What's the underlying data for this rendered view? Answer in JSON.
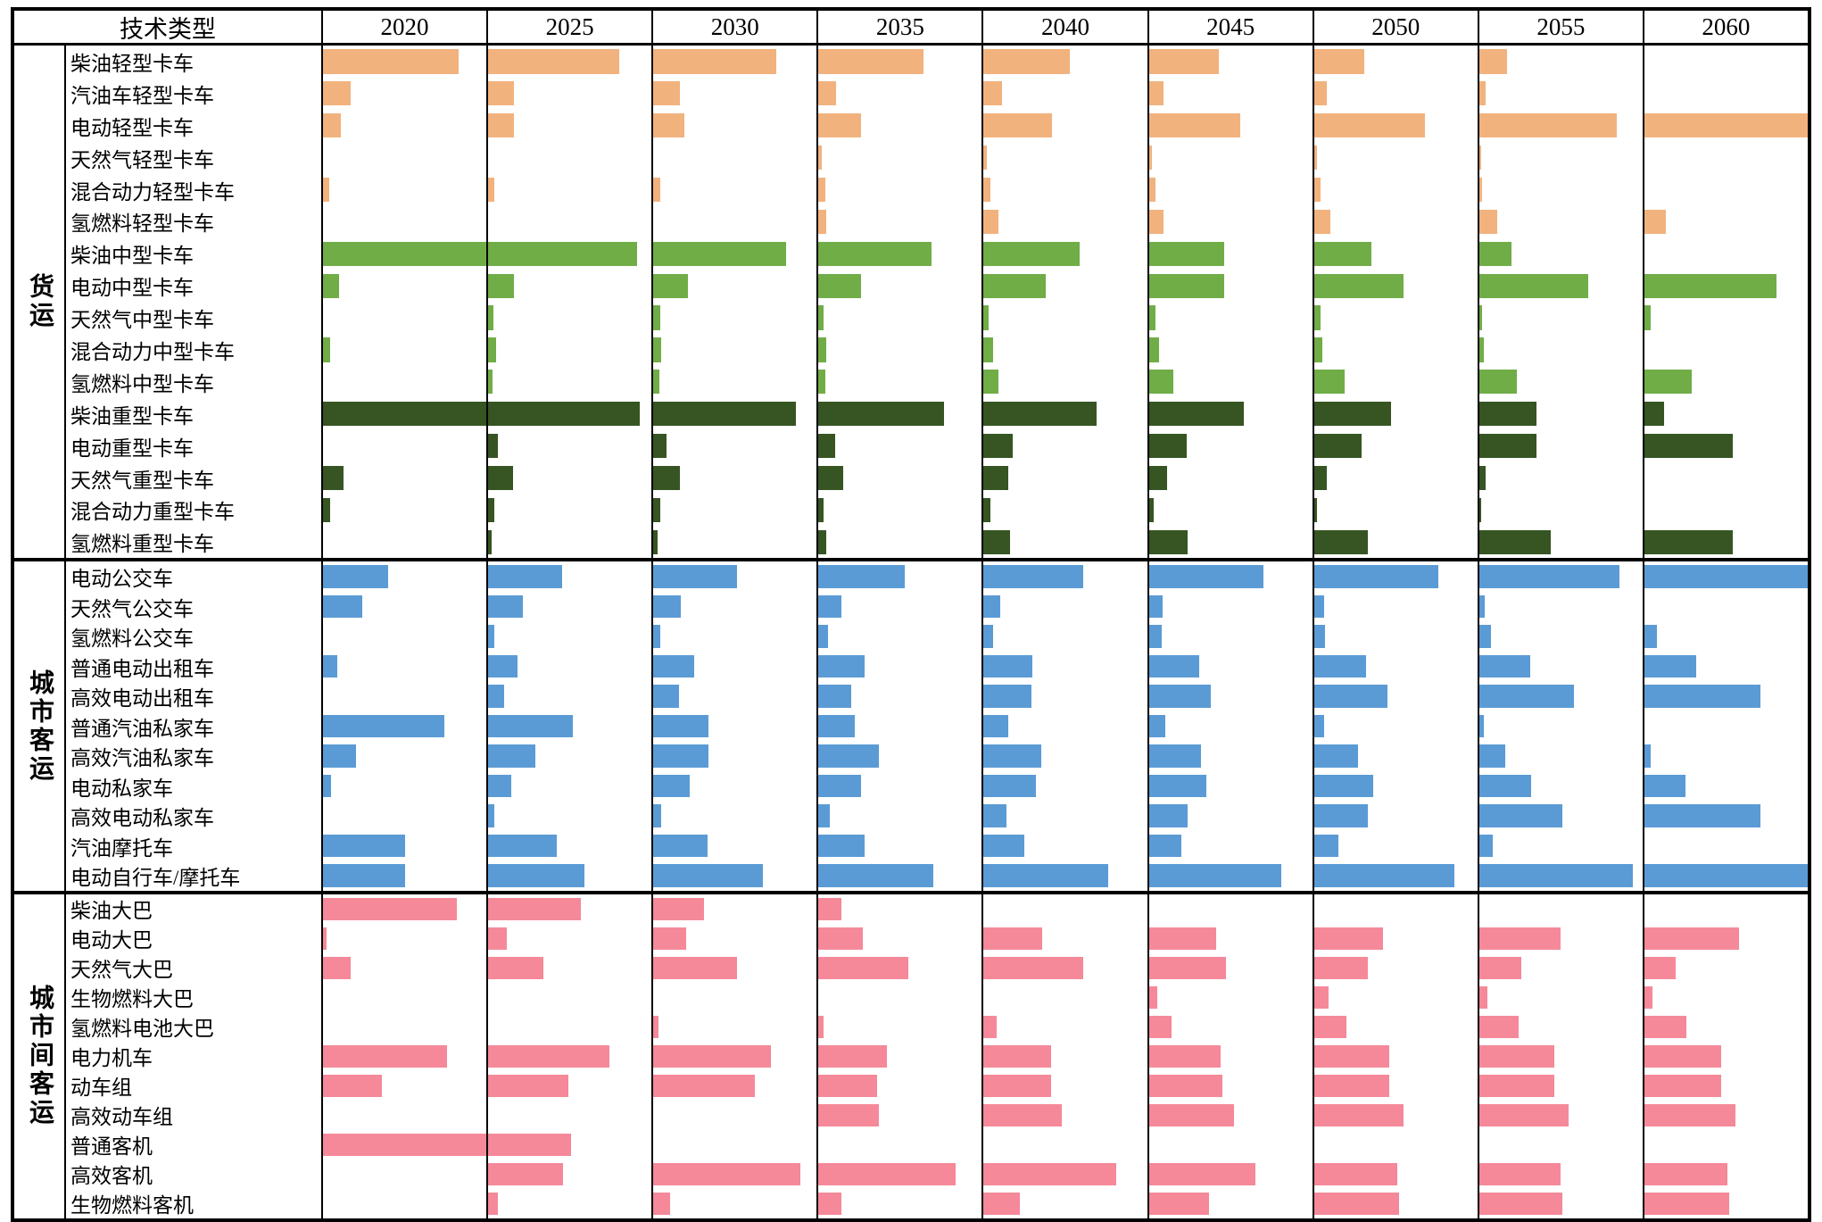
{
  "chart_data": {
    "type": "bar",
    "layout": "small-multiples, one horizontal bar per year column; bar length is fraction of column width (no numeric axis shown)",
    "header": {
      "tech_type": "技术类型"
    },
    "years": [
      "2020",
      "2025",
      "2030",
      "2035",
      "2040",
      "2045",
      "2050",
      "2055",
      "2060"
    ],
    "legend_position": "none",
    "grid": "column and section rules only",
    "colors": {
      "light_truck_orange": "#F2B27E",
      "medium_truck_green": "#70AD47",
      "heavy_truck_dark_green": "#365523",
      "urban_blue": "#5B9BD5",
      "intercity_pink": "#F58999"
    },
    "groups": [
      {
        "category": "货运",
        "rows": [
          {
            "label": "柴油轻型卡车",
            "color": "#F2B27E",
            "fractions": [
              0.83,
              0.8,
              0.75,
              0.64,
              0.53,
              0.43,
              0.31,
              0.17,
              0
            ]
          },
          {
            "label": "汽油车轻型卡车",
            "color": "#F2B27E",
            "fractions": [
              0.17,
              0.16,
              0.16,
              0.11,
              0.11,
              0.09,
              0.08,
              0.04,
              0
            ]
          },
          {
            "label": "电动轻型卡车",
            "color": "#F2B27E",
            "fractions": [
              0.11,
              0.16,
              0.19,
              0.26,
              0.42,
              0.56,
              0.68,
              0.84,
              1.0
            ]
          },
          {
            "label": "天然气轻型卡车",
            "color": "#F2B27E",
            "fractions": [
              0,
              0,
              0,
              0.02,
              0.02,
              0.02,
              0.02,
              0.01,
              0
            ]
          },
          {
            "label": "混合动力轻型卡车",
            "color": "#F2B27E",
            "fractions": [
              0.04,
              0.04,
              0.045,
              0.04,
              0.04,
              0.04,
              0.04,
              0.02,
              0
            ]
          },
          {
            "label": "氢燃料轻型卡车",
            "color": "#F2B27E",
            "fractions": [
              0,
              0,
              0,
              0.05,
              0.09,
              0.09,
              0.1,
              0.11,
              0.13
            ]
          },
          {
            "label": "柴油中型卡车",
            "color": "#70AD47",
            "fractions": [
              1.0,
              0.91,
              0.81,
              0.69,
              0.59,
              0.46,
              0.35,
              0.2,
              0
            ]
          },
          {
            "label": "电动中型卡车",
            "color": "#70AD47",
            "fractions": [
              0.1,
              0.16,
              0.21,
              0.26,
              0.38,
              0.46,
              0.55,
              0.67,
              0.81
            ]
          },
          {
            "label": "天然气中型卡车",
            "color": "#70AD47",
            "fractions": [
              0,
              0.03,
              0.045,
              0.03,
              0.03,
              0.04,
              0.04,
              0.02,
              0.04
            ]
          },
          {
            "label": "混合动力中型卡车",
            "color": "#70AD47",
            "fractions": [
              0.045,
              0.05,
              0.05,
              0.05,
              0.06,
              0.06,
              0.05,
              0.03,
              0
            ]
          },
          {
            "label": "氢燃料中型卡车",
            "color": "#70AD47",
            "fractions": [
              0,
              0.025,
              0.035,
              0.04,
              0.09,
              0.15,
              0.19,
              0.23,
              0.29
            ]
          },
          {
            "label": "柴油重型卡车",
            "color": "#365523",
            "fractions": [
              1.0,
              0.93,
              0.87,
              0.77,
              0.69,
              0.58,
              0.47,
              0.35,
              0.12
            ]
          },
          {
            "label": "电动重型卡车",
            "color": "#365523",
            "fractions": [
              0,
              0.06,
              0.08,
              0.1,
              0.18,
              0.23,
              0.29,
              0.35,
              0.54
            ]
          },
          {
            "label": "天然气重型卡车",
            "color": "#365523",
            "fractions": [
              0.125,
              0.15,
              0.16,
              0.15,
              0.15,
              0.11,
              0.08,
              0.04,
              0
            ]
          },
          {
            "label": "混合动力重型卡车",
            "color": "#365523",
            "fractions": [
              0.045,
              0.04,
              0.04,
              0.03,
              0.04,
              0.03,
              0.02,
              0.01,
              0
            ]
          },
          {
            "label": "氢燃料重型卡车",
            "color": "#365523",
            "fractions": [
              0,
              0.023,
              0.027,
              0.05,
              0.16,
              0.24,
              0.33,
              0.44,
              0.54
            ]
          }
        ]
      },
      {
        "category": "城市客运",
        "rows": [
          {
            "label": "电动公交车",
            "color": "#5B9BD5",
            "fractions": [
              0.4,
              0.45,
              0.51,
              0.53,
              0.61,
              0.7,
              0.76,
              0.86,
              1.0
            ]
          },
          {
            "label": "天然气公交车",
            "color": "#5B9BD5",
            "fractions": [
              0.24,
              0.21,
              0.17,
              0.14,
              0.1,
              0.085,
              0.06,
              0.035,
              0
            ]
          },
          {
            "label": "氢燃料公交车",
            "color": "#5B9BD5",
            "fractions": [
              0,
              0.035,
              0.04,
              0.06,
              0.06,
              0.08,
              0.07,
              0.075,
              0.075
            ]
          },
          {
            "label": "普通电动出租车",
            "color": "#5B9BD5",
            "fractions": [
              0.09,
              0.18,
              0.25,
              0.28,
              0.3,
              0.31,
              0.32,
              0.31,
              0.32
            ]
          },
          {
            "label": "高效电动出租车",
            "color": "#5B9BD5",
            "fractions": [
              0,
              0.1,
              0.155,
              0.2,
              0.29,
              0.38,
              0.45,
              0.58,
              0.71
            ]
          },
          {
            "label": "普通汽油私家车",
            "color": "#5B9BD5",
            "fractions": [
              0.74,
              0.52,
              0.34,
              0.22,
              0.15,
              0.1,
              0.06,
              0.03,
              0
            ]
          },
          {
            "label": "高效汽油私家车",
            "color": "#5B9BD5",
            "fractions": [
              0.2,
              0.29,
              0.34,
              0.37,
              0.35,
              0.32,
              0.27,
              0.16,
              0.04
            ]
          },
          {
            "label": "电动私家车",
            "color": "#5B9BD5",
            "fractions": [
              0.05,
              0.14,
              0.22,
              0.26,
              0.32,
              0.35,
              0.36,
              0.32,
              0.25
            ]
          },
          {
            "label": "高效电动私家车",
            "color": "#5B9BD5",
            "fractions": [
              0,
              0.035,
              0.05,
              0.07,
              0.14,
              0.24,
              0.33,
              0.51,
              0.71
            ]
          },
          {
            "label": "汽油摩托车",
            "color": "#5B9BD5",
            "fractions": [
              0.5,
              0.42,
              0.33,
              0.28,
              0.25,
              0.2,
              0.15,
              0.085,
              0
            ]
          },
          {
            "label": "电动自行车/摩托车",
            "color": "#5B9BD5",
            "fractions": [
              0.5,
              0.59,
              0.67,
              0.7,
              0.76,
              0.81,
              0.86,
              0.94,
              1.0
            ]
          }
        ]
      },
      {
        "category": "城市间客运",
        "rows": [
          {
            "label": "柴油大巴",
            "color": "#F58999",
            "fractions": [
              0.82,
              0.57,
              0.31,
              0.14,
              0,
              0,
              0,
              0,
              0
            ]
          },
          {
            "label": "电动大巴",
            "color": "#F58999",
            "fractions": [
              0.02,
              0.115,
              0.2,
              0.27,
              0.36,
              0.41,
              0.42,
              0.5,
              0.58
            ]
          },
          {
            "label": "天然气大巴",
            "color": "#F58999",
            "fractions": [
              0.17,
              0.34,
              0.51,
              0.55,
              0.61,
              0.47,
              0.33,
              0.26,
              0.19
            ]
          },
          {
            "label": "生物燃料大巴",
            "color": "#F58999",
            "fractions": [
              0,
              0,
              0,
              0,
              0,
              0.05,
              0.09,
              0.05,
              0.05
            ]
          },
          {
            "label": "氢燃料电池大巴",
            "color": "#F58999",
            "fractions": [
              0,
              0,
              0.03,
              0.03,
              0.08,
              0.14,
              0.2,
              0.24,
              0.26
            ]
          },
          {
            "label": "电力机车",
            "color": "#F58999",
            "fractions": [
              0.76,
              0.74,
              0.72,
              0.42,
              0.41,
              0.44,
              0.46,
              0.46,
              0.47
            ]
          },
          {
            "label": "动车组",
            "color": "#F58999",
            "fractions": [
              0.36,
              0.49,
              0.62,
              0.36,
              0.41,
              0.45,
              0.46,
              0.46,
              0.47
            ]
          },
          {
            "label": "高效动车组",
            "color": "#F58999",
            "fractions": [
              0,
              0,
              0,
              0.37,
              0.48,
              0.52,
              0.55,
              0.55,
              0.56
            ]
          },
          {
            "label": "普通客机",
            "color": "#F58999",
            "fractions": [
              1.0,
              0.51,
              0,
              0,
              0,
              0,
              0,
              0,
              0
            ]
          },
          {
            "label": "高效客机",
            "color": "#F58999",
            "fractions": [
              0,
              0.46,
              0.9,
              0.84,
              0.81,
              0.65,
              0.51,
              0.5,
              0.51
            ]
          },
          {
            "label": "生物燃料客机",
            "color": "#F58999",
            "fractions": [
              0,
              0.06,
              0.1,
              0.14,
              0.22,
              0.37,
              0.52,
              0.51,
              0.52
            ]
          }
        ]
      }
    ]
  }
}
